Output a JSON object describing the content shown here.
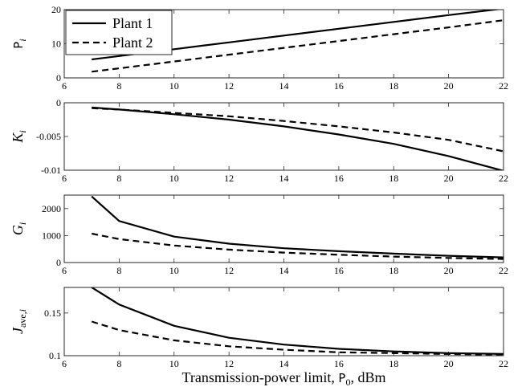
{
  "chart_data": [
    {
      "type": "line",
      "ylabel": "P_i",
      "x": [
        7,
        8,
        10,
        12,
        14,
        16,
        18,
        20,
        22
      ],
      "xlim": [
        6,
        22
      ],
      "ylim": [
        0,
        20
      ],
      "xticks": [
        6,
        8,
        10,
        12,
        14,
        16,
        18,
        20,
        22
      ],
      "yticks": [
        0,
        10,
        20
      ],
      "ytick_labels": [
        "0",
        "10",
        "20"
      ],
      "series": [
        {
          "name": "Plant 1",
          "style": "solid",
          "values": [
            5.4,
            6.4,
            8.4,
            10.4,
            12.4,
            14.4,
            16.4,
            18.4,
            20.3
          ]
        },
        {
          "name": "Plant 2",
          "style": "dashed",
          "values": [
            1.8,
            2.8,
            4.8,
            6.8,
            8.8,
            10.8,
            12.8,
            14.8,
            16.9
          ]
        }
      ],
      "legend": "top-left"
    },
    {
      "type": "line",
      "ylabel": "K_i",
      "x": [
        7,
        8,
        10,
        12,
        14,
        16,
        18,
        20,
        22
      ],
      "xlim": [
        6,
        22
      ],
      "ylim": [
        -0.01,
        0
      ],
      "xticks": [
        6,
        8,
        10,
        12,
        14,
        16,
        18,
        20,
        22
      ],
      "yticks": [
        -0.01,
        -0.005,
        0
      ],
      "ytick_labels": [
        "-0.01",
        "-0.005",
        "0"
      ],
      "series": [
        {
          "name": "Plant 1",
          "style": "solid",
          "values": [
            -0.0007,
            -0.001,
            -0.0017,
            -0.0025,
            -0.0035,
            -0.0047,
            -0.0061,
            -0.0079,
            -0.0101
          ]
        },
        {
          "name": "Plant 2",
          "style": "dashed",
          "values": [
            -0.0008,
            -0.001,
            -0.0015,
            -0.002,
            -0.0027,
            -0.0035,
            -0.0044,
            -0.0055,
            -0.0072
          ]
        }
      ]
    },
    {
      "type": "line",
      "ylabel": "G_i",
      "x": [
        7,
        8,
        10,
        12,
        14,
        16,
        18,
        20,
        22
      ],
      "xlim": [
        6,
        22
      ],
      "ylim": [
        0,
        2500
      ],
      "xticks": [
        6,
        8,
        10,
        12,
        14,
        16,
        18,
        20,
        22
      ],
      "yticks": [
        0,
        1000,
        2000
      ],
      "ytick_labels": [
        "0",
        "1000",
        "2000"
      ],
      "series": [
        {
          "name": "Plant 1",
          "style": "solid",
          "values": [
            2450,
            1540,
            960,
            700,
            530,
            420,
            330,
            250,
            190
          ]
        },
        {
          "name": "Plant 2",
          "style": "dashed",
          "values": [
            1070,
            870,
            630,
            480,
            370,
            290,
            220,
            170,
            130
          ]
        }
      ]
    },
    {
      "type": "line",
      "ylabel": "J_ave,i",
      "x": [
        7,
        8,
        10,
        12,
        14,
        16,
        18,
        20,
        22
      ],
      "xlim": [
        6,
        22
      ],
      "ylim": [
        0.1,
        0.18
      ],
      "xticks": [
        6,
        8,
        10,
        12,
        14,
        16,
        18,
        20,
        22
      ],
      "yticks": [
        0.1,
        0.15
      ],
      "ytick_labels": [
        "0.1",
        "0.15"
      ],
      "series": [
        {
          "name": "Plant 1",
          "style": "solid",
          "values": [
            0.18,
            0.16,
            0.135,
            0.121,
            0.113,
            0.108,
            0.105,
            0.103,
            0.102
          ]
        },
        {
          "name": "Plant 2",
          "style": "dashed",
          "values": [
            0.14,
            0.13,
            0.118,
            0.111,
            0.107,
            0.104,
            0.103,
            0.102,
            0.101
          ]
        }
      ],
      "xlabel": "Transmission-power limit, P_0, dBm"
    }
  ]
}
